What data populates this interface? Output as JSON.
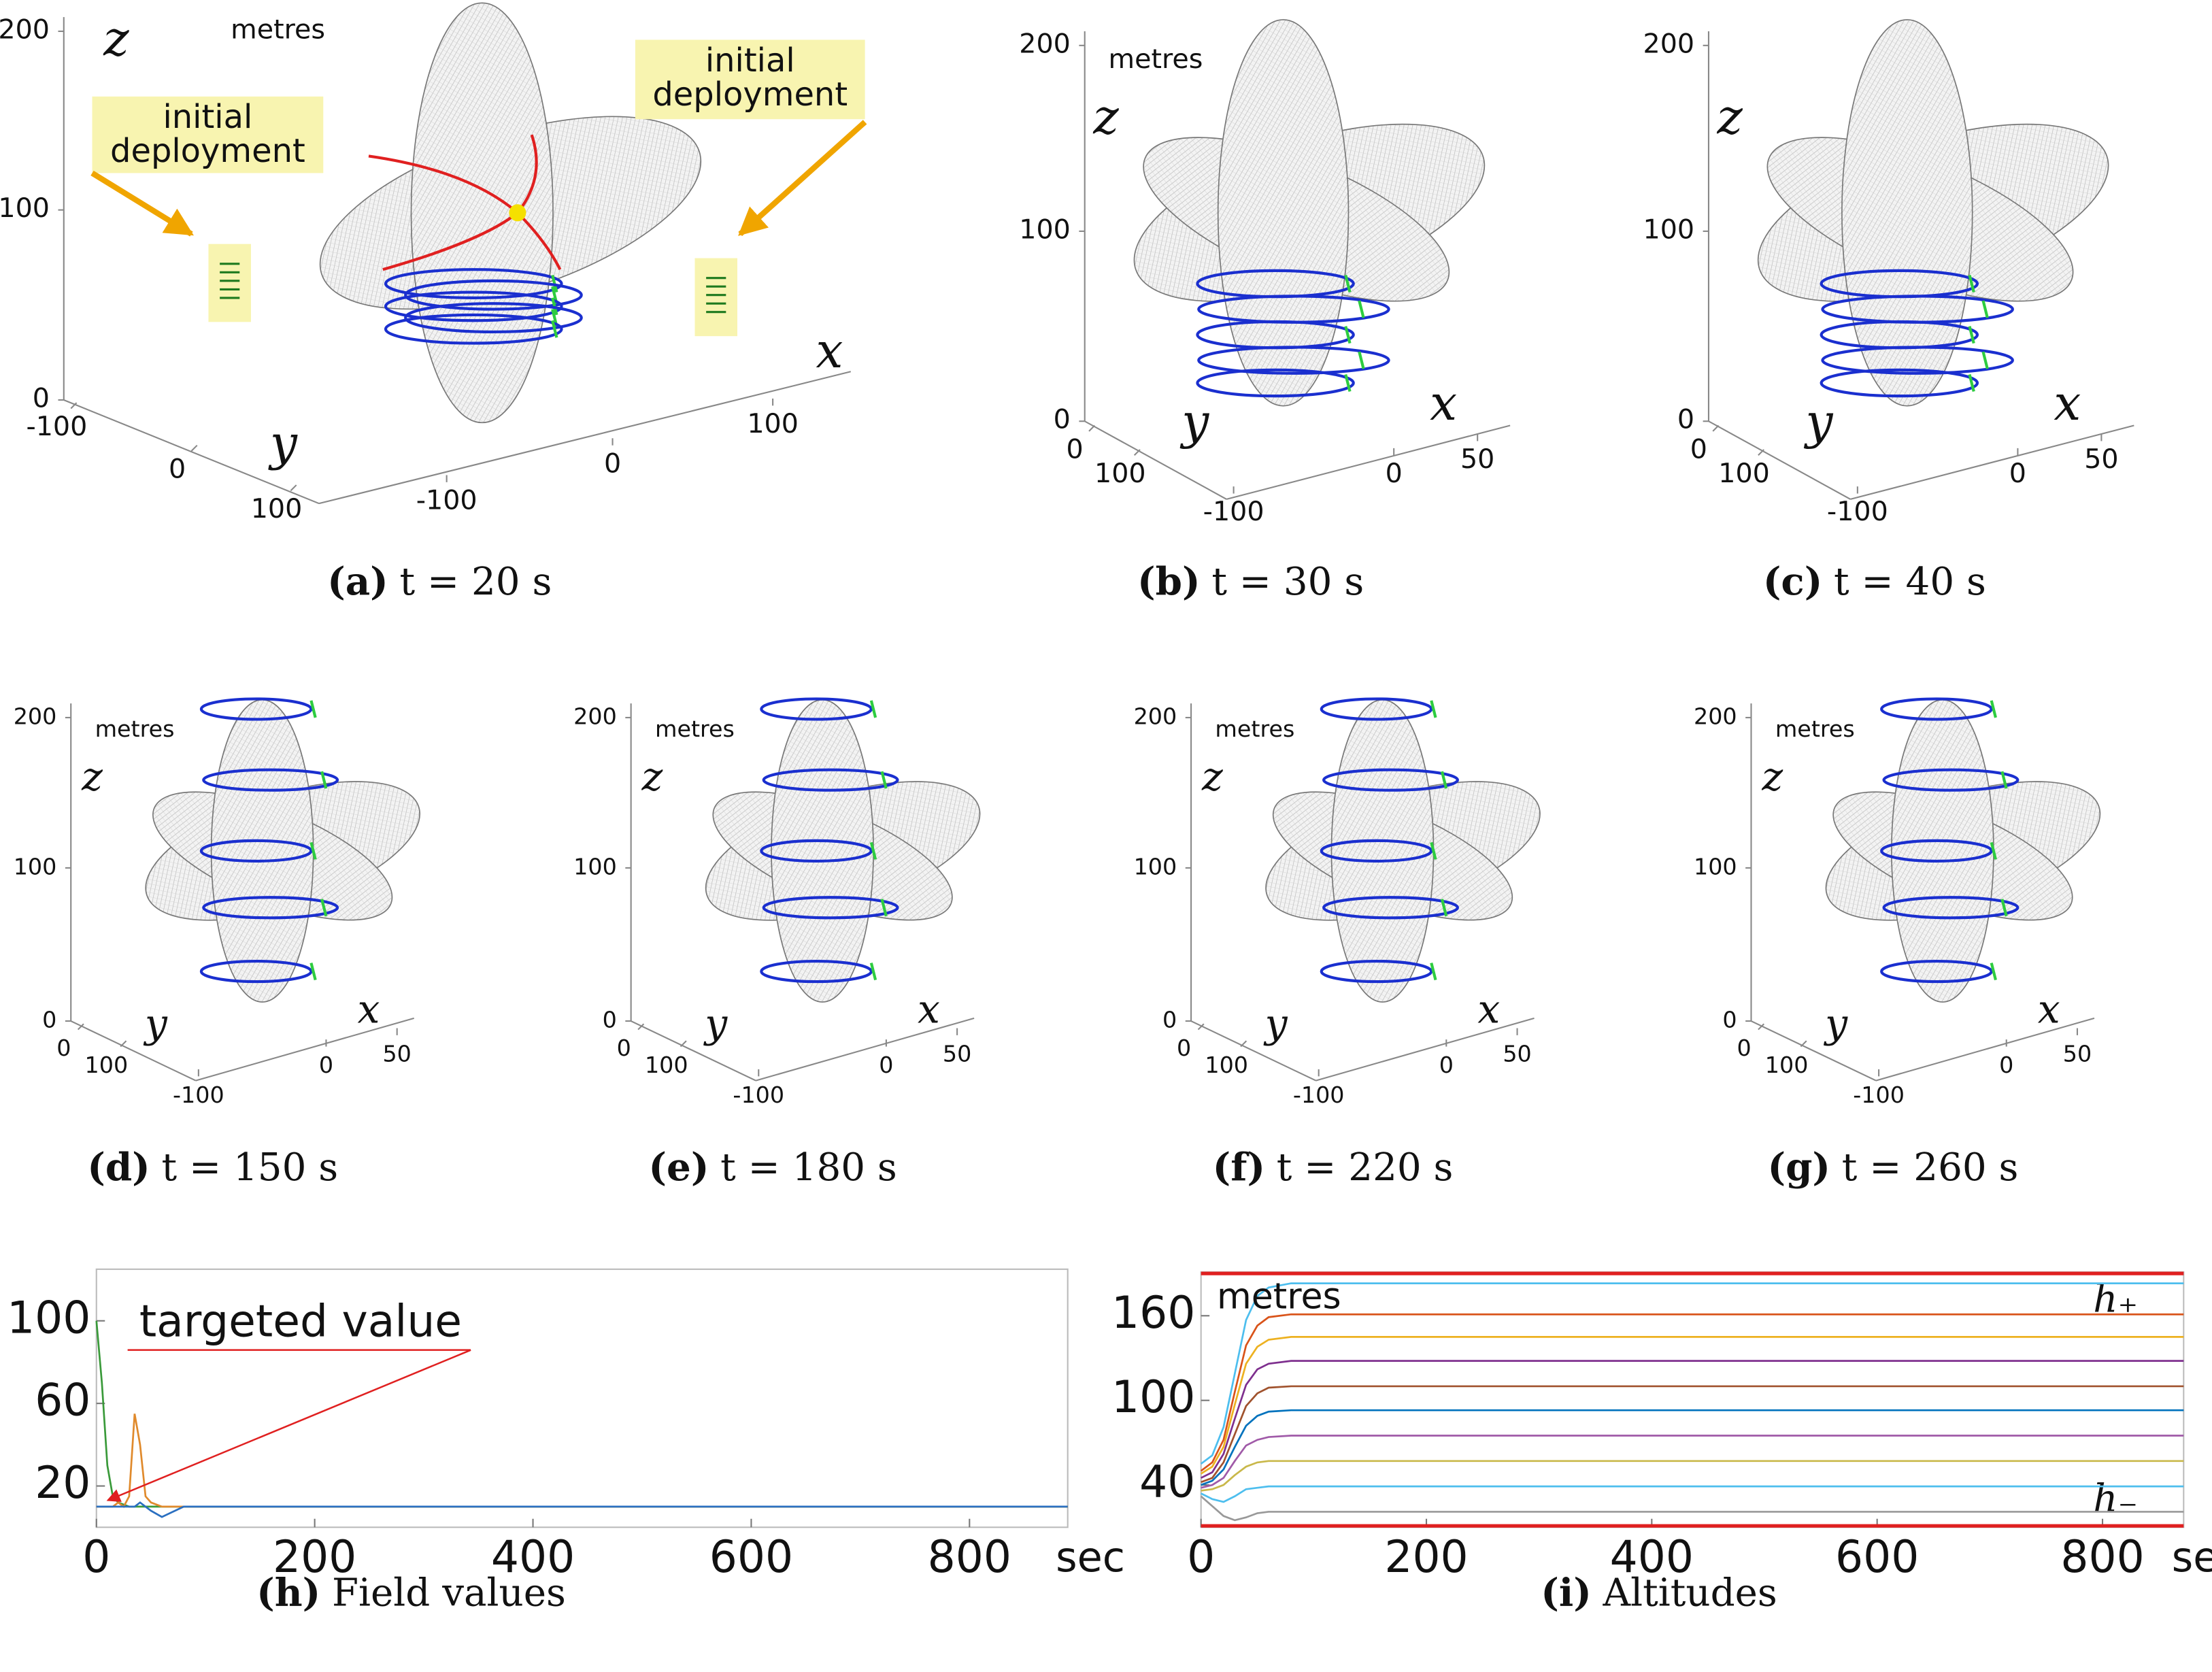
{
  "chart_data": [
    {
      "type": "surface3d",
      "panel": "(a)",
      "caption": "t = 20 s",
      "unit": "metres",
      "xlabel": "x",
      "ylabel": "y",
      "zlabel": "z",
      "xticks": [
        -100,
        0,
        100
      ],
      "yticks": [
        -100,
        0,
        100
      ],
      "zticks": [
        0,
        100,
        200
      ],
      "annotations": [
        [
          "initial",
          "deployment"
        ],
        [
          "initial",
          "deployment"
        ]
      ]
    },
    {
      "type": "surface3d",
      "panel": "(b)",
      "caption": "t = 30 s",
      "unit": "metres",
      "xlabel": "x",
      "ylabel": "y",
      "zlabel": "z",
      "xticks": [
        -100,
        0,
        50
      ],
      "yticks": [
        0,
        100
      ],
      "zticks": [
        0,
        100,
        200
      ]
    },
    {
      "type": "surface3d",
      "panel": "(c)",
      "caption": "t = 40 s",
      "xlabel": "x",
      "ylabel": "y",
      "zlabel": "z",
      "xticks": [
        -100,
        0,
        50
      ],
      "yticks": [
        0,
        100
      ],
      "zticks": [
        0,
        100,
        200
      ]
    },
    {
      "type": "surface3d",
      "panel": "(d)",
      "caption": "t = 150 s",
      "unit": "metres",
      "xlabel": "x",
      "ylabel": "y",
      "zlabel": "z",
      "xticks": [
        -100,
        0,
        50
      ],
      "yticks": [
        0,
        100
      ],
      "zticks": [
        0,
        100,
        200
      ]
    },
    {
      "type": "surface3d",
      "panel": "(e)",
      "caption": "t = 180 s",
      "unit": "metres",
      "xlabel": "x",
      "ylabel": "y",
      "zlabel": "z",
      "xticks": [
        -100,
        0,
        50
      ],
      "yticks": [
        0,
        100
      ],
      "zticks": [
        0,
        100,
        200
      ]
    },
    {
      "type": "surface3d",
      "panel": "(f)",
      "caption": "t = 220 s",
      "unit": "metres",
      "xlabel": "x",
      "ylabel": "y",
      "zlabel": "z",
      "xticks": [
        -100,
        0,
        50
      ],
      "yticks": [
        0,
        100
      ],
      "zticks": [
        0,
        100,
        200
      ]
    },
    {
      "type": "surface3d",
      "panel": "(g)",
      "caption": "t = 260 s",
      "unit": "metres",
      "xlabel": "x",
      "ylabel": "y",
      "zlabel": "z",
      "xticks": [
        -100,
        0,
        50
      ],
      "yticks": [
        0,
        100
      ],
      "zticks": [
        0,
        100,
        200
      ]
    },
    {
      "type": "line",
      "panel": "(h)",
      "caption": "Field values",
      "x_unit": "sec",
      "annotation": "targeted value",
      "x": [
        0,
        5,
        10,
        15,
        20,
        25,
        30,
        35,
        40,
        45,
        50,
        60,
        80,
        100,
        200,
        400,
        600,
        800,
        890
      ],
      "series": [
        {
          "color": "#3a9a3a",
          "values": [
            100,
            70,
            30,
            15,
            12,
            11,
            10,
            10,
            10,
            10,
            10,
            10,
            10,
            10,
            10,
            10,
            10,
            10,
            10
          ]
        },
        {
          "color": "#e08a2c",
          "values": [
            10,
            10,
            10,
            10,
            12,
            10,
            15,
            55,
            40,
            15,
            12,
            10,
            10,
            10,
            10,
            10,
            10,
            10,
            10
          ]
        },
        {
          "color": "#2a6fc0",
          "values": [
            10,
            10,
            10,
            10,
            10,
            10,
            10,
            10,
            12,
            10,
            8,
            5,
            10,
            10,
            10,
            10,
            10,
            10,
            10
          ]
        }
      ],
      "xlim": [
        0,
        890
      ],
      "ylim": [
        0,
        125
      ],
      "xticks": [
        0,
        200,
        400,
        600,
        800
      ],
      "yticks": [
        20,
        60,
        100
      ]
    },
    {
      "type": "line",
      "panel": "(i)",
      "caption": "Altitudes",
      "x_unit": "sec",
      "unit": "metres",
      "x": [
        0,
        10,
        20,
        30,
        40,
        50,
        60,
        80,
        100,
        150,
        200,
        400,
        600,
        800,
        872
      ],
      "series": [
        {
          "color": "#4dbeee",
          "values": [
            55,
            61,
            81,
            119,
            157,
            174,
            180,
            183,
            183,
            183,
            183,
            183,
            183,
            183,
            183
          ]
        },
        {
          "color": "#d95319",
          "values": [
            50,
            56,
            72,
            106,
            139,
            153,
            159,
            161,
            161,
            161,
            161,
            161,
            161,
            161,
            161
          ]
        },
        {
          "color": "#edb120",
          "values": [
            48,
            53,
            67,
            97,
            126,
            138,
            143,
            145,
            145,
            145,
            145,
            145,
            145,
            145,
            145
          ]
        },
        {
          "color": "#7e2f8e",
          "values": [
            45,
            49,
            62,
            87,
            111,
            122,
            126,
            128,
            128,
            128,
            128,
            128,
            128,
            128,
            128
          ]
        },
        {
          "color": "#a0522d",
          "values": [
            42,
            45,
            56,
            76,
            96,
            105,
            109,
            110,
            110,
            110,
            110,
            110,
            110,
            110,
            110
          ]
        },
        {
          "color": "#0072bd",
          "values": [
            40,
            43,
            51,
            67,
            82,
            89,
            92,
            93,
            93,
            93,
            93,
            93,
            93,
            93,
            93
          ]
        },
        {
          "color": "#a05aa8",
          "values": [
            38,
            40,
            45,
            57,
            68,
            72,
            74,
            75,
            75,
            75,
            75,
            75,
            75,
            75,
            75
          ]
        },
        {
          "color": "#c9b84a",
          "values": [
            36,
            37,
            40,
            47,
            53,
            56,
            57,
            57,
            57,
            57,
            57,
            57,
            57,
            57,
            57
          ]
        },
        {
          "color": "#4dbeee",
          "values": [
            34,
            30,
            28,
            32,
            37,
            38,
            39,
            39,
            39,
            39,
            39,
            39,
            39,
            39,
            39
          ]
        },
        {
          "color": "#999999",
          "values": [
            32,
            25,
            18,
            15,
            17,
            20,
            21,
            21,
            21,
            21,
            21,
            21,
            21,
            21,
            21
          ]
        }
      ],
      "bounds": [
        {
          "label": "h₊",
          "value": 190
        },
        {
          "label": "h₋",
          "value": 11
        }
      ],
      "xlim": [
        0,
        872
      ],
      "ylim": [
        10,
        191
      ],
      "xticks": [
        0,
        200,
        400,
        600,
        800
      ],
      "yticks": [
        40,
        100,
        160
      ]
    }
  ]
}
